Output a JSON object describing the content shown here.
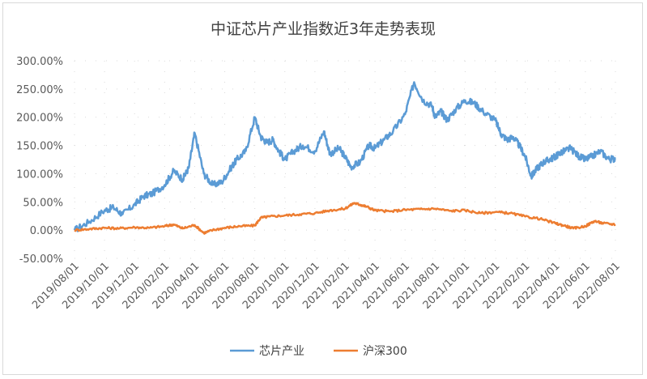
{
  "chart_data": {
    "type": "line",
    "title": "中证芯片产业指数近3年走势表现",
    "xlabel": "",
    "ylabel": "",
    "ylim": [
      -50,
      300
    ],
    "yticks": [
      "300.00%",
      "250.00%",
      "200.00%",
      "150.00%",
      "100.00%",
      "50.00%",
      "0.00%",
      "-50.00%"
    ],
    "ytick_values": [
      300,
      250,
      200,
      150,
      100,
      50,
      0,
      -50
    ],
    "x_categories": [
      "2019/08/01",
      "2019/10/01",
      "2019/12/01",
      "2020/02/01",
      "2020/04/01",
      "2020/06/01",
      "2020/08/01",
      "2020/10/01",
      "2020/12/01",
      "2021/02/01",
      "2021/04/01",
      "2021/06/01",
      "2021/08/01",
      "2021/10/01",
      "2021/12/01",
      "2022/02/01",
      "2022/04/01",
      "2022/06/01",
      "2022/08/01"
    ],
    "grid": true,
    "legend_position": "bottom",
    "series": [
      {
        "name": "芯片产业",
        "color": "#5B9BD5",
        "x": [
          0,
          0.5,
          1,
          1.3,
          1.6,
          2,
          2.3,
          2.6,
          3,
          3.3,
          3.6,
          3.8,
          4,
          4.3,
          4.6,
          4.9,
          5.2,
          5.4,
          5.7,
          6,
          6.2,
          6.4,
          6.6,
          6.8,
          7,
          7.3,
          7.6,
          8,
          8.3,
          8.5,
          8.8,
          9,
          9.2,
          9.5,
          9.8,
          10,
          10.3,
          10.6,
          11,
          11.3,
          11.6,
          11.9,
          12,
          12.2,
          12.4,
          12.7,
          13,
          13.3,
          13.6,
          14,
          14.2,
          14.4,
          14.6,
          14.8,
          15,
          15.2,
          15.4,
          15.6,
          15.8,
          16,
          16.1,
          16.3,
          16.5,
          16.8,
          17,
          17.2,
          17.5,
          17.8,
          18
        ],
        "y": [
          0,
          15,
          35,
          40,
          28,
          45,
          60,
          65,
          80,
          105,
          90,
          110,
          172,
          100,
          80,
          85,
          110,
          125,
          140,
          200,
          165,
          155,
          160,
          140,
          125,
          140,
          150,
          140,
          175,
          135,
          145,
          130,
          112,
          120,
          150,
          145,
          160,
          175,
          205,
          262,
          230,
          220,
          200,
          210,
          195,
          215,
          230,
          225,
          210,
          195,
          170,
          160,
          165,
          150,
          130,
          95,
          110,
          120,
          125,
          130,
          135,
          140,
          145,
          130,
          125,
          130,
          140,
          125,
          127
        ]
      },
      {
        "name": "沪深300",
        "color": "#ED7D31",
        "x": [
          0,
          0.5,
          1,
          1.5,
          2,
          2.5,
          3,
          3.3,
          3.6,
          4,
          4.3,
          4.6,
          5,
          5.5,
          6,
          6.2,
          6.5,
          7,
          7.5,
          8,
          8.5,
          9,
          9.3,
          9.5,
          9.7,
          10,
          10.5,
          11,
          11.5,
          12,
          12.5,
          13,
          13.5,
          14,
          14.5,
          15,
          15.5,
          16,
          16.3,
          16.6,
          17,
          17.3,
          17.6,
          18
        ],
        "y": [
          0,
          2,
          4,
          3,
          5,
          4,
          7,
          10,
          3,
          9,
          -5,
          0,
          4,
          7,
          8,
          22,
          24,
          26,
          28,
          30,
          35,
          38,
          48,
          45,
          42,
          35,
          33,
          36,
          37,
          38,
          34,
          35,
          30,
          32,
          30,
          24,
          20,
          12,
          8,
          3,
          7,
          16,
          12,
          10
        ]
      }
    ]
  }
}
